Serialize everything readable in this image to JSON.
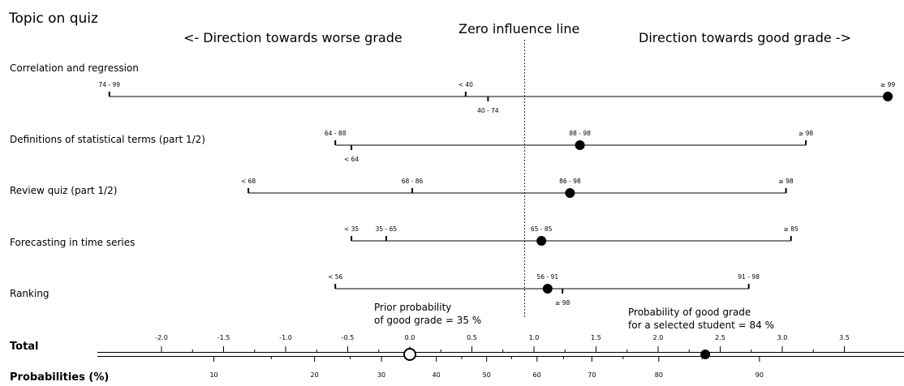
{
  "chart_data": {
    "type": "nomogram",
    "title": "Topic on quiz",
    "direction_left": "<- Direction towards worse grade",
    "direction_right": "Direction towards good grade ->",
    "zero_line_label": "Zero influence line",
    "zero_value": 0.925,
    "xlim": [
      -2.6,
      3.9
    ],
    "variables": [
      {
        "name": "Correlation and regression",
        "selected": "≥ 99",
        "levels": [
          {
            "label": "74 - 99",
            "value": -2.42,
            "side": "above"
          },
          {
            "label": "< 40",
            "value": 0.45,
            "side": "above"
          },
          {
            "label": "40 - 74",
            "value": 0.63,
            "side": "below"
          },
          {
            "label": "≥ 99",
            "value": 3.85,
            "side": "above"
          }
        ]
      },
      {
        "name": "Definitions of statistical terms (part 1/2)",
        "selected": "88 - 98",
        "levels": [
          {
            "label": "64 - 88",
            "value": -0.6,
            "side": "above"
          },
          {
            "label": "< 64",
            "value": -0.47,
            "side": "below"
          },
          {
            "label": "88 - 98",
            "value": 1.37,
            "side": "above"
          },
          {
            "label": "≥ 98",
            "value": 3.19,
            "side": "above"
          }
        ]
      },
      {
        "name": "Review quiz (part 1/2)",
        "selected": "86 - 98",
        "levels": [
          {
            "label": "< 68",
            "value": -1.3,
            "side": "above"
          },
          {
            "label": "68 - 86",
            "value": 0.02,
            "side": "above"
          },
          {
            "label": "86 - 98",
            "value": 1.29,
            "side": "above"
          },
          {
            "label": "≥ 98",
            "value": 3.03,
            "side": "above"
          }
        ]
      },
      {
        "name": "Forecasting in time series",
        "selected": "65 - 85",
        "levels": [
          {
            "label": "< 35",
            "value": -0.47,
            "side": "above"
          },
          {
            "label": "35 - 65",
            "value": -0.19,
            "side": "above"
          },
          {
            "label": "65 - 85",
            "value": 1.06,
            "side": "above"
          },
          {
            "label": "≥ 85",
            "value": 3.07,
            "side": "above"
          }
        ]
      },
      {
        "name": "Ranking",
        "selected": "56 - 91",
        "levels": [
          {
            "label": "< 56",
            "value": -0.6,
            "side": "above"
          },
          {
            "label": "56 - 91",
            "value": 1.11,
            "side": "above"
          },
          {
            "label": "≥ 98",
            "value": 1.23,
            "side": "below"
          },
          {
            "label": "91 - 98",
            "value": 2.73,
            "side": "above"
          }
        ]
      }
    ],
    "prior_label_1": "Prior probability",
    "prior_label_2": "of good grade = 35 %",
    "prior_value": 0.0,
    "student_label_1": "Probability of good grade",
    "student_label_2": "for a selected student = 84 %",
    "student_value": 2.38,
    "total_label": "Total",
    "probabilities_label": "Probabilities (%)",
    "total_ticks": [
      -2.0,
      -1.5,
      -1.0,
      -0.5,
      0.0,
      0.5,
      1.0,
      1.5,
      2.0,
      2.5,
      3.0,
      3.5
    ],
    "total_tick_labels": [
      "-2.0",
      "-1.5",
      "-1.0",
      "-0.5",
      "0.0",
      "0.5",
      "1.0",
      "1.5",
      "2.0",
      "2.5",
      "3.0",
      "3.5"
    ],
    "prob_ticks": [
      10,
      20,
      30,
      40,
      50,
      60,
      70,
      80,
      90
    ],
    "prob_tick_labels": [
      "10",
      "20",
      "30",
      "40",
      "50",
      "60",
      "70",
      "80",
      "90"
    ],
    "prob_intercept_pct": 35
  }
}
